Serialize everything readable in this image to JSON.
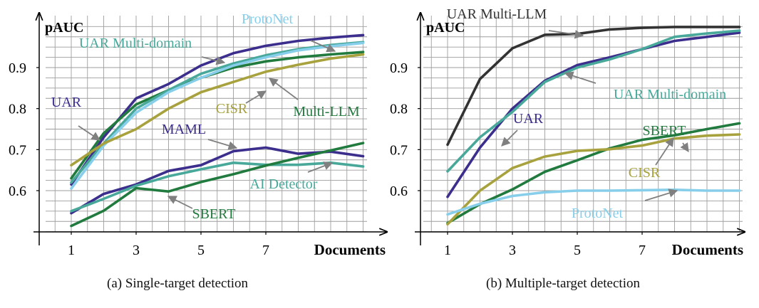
{
  "captions": [
    "(a) Single-target detection",
    "(b) Multiple-target detection"
  ],
  "colors": {
    "UAR": "#3b2e8c",
    "MAML": "#3b2e8c",
    "Multi-LLM": "#217a3e",
    "SBERT": "#217a3e",
    "UAR Multi-domain": "#48a89a",
    "AI Detector": "#48a89a",
    "CISR": "#a8a23e",
    "ProtoNet": "#87ceeb",
    "arrow": "#808080",
    "grid": "#9e9e9e"
  },
  "chart_data": [
    {
      "type": "line",
      "ylabel": "pAUC",
      "xlabel": "Documents",
      "xlim": [
        0,
        10
      ],
      "ylim": [
        0.5,
        1.0
      ],
      "xticks": [
        "1",
        "3",
        "5",
        "7"
      ],
      "yticks": [
        "0.6",
        "0.7",
        "0.8",
        "0.9"
      ],
      "grid": true,
      "x": [
        1,
        2,
        3,
        4,
        5,
        6,
        7,
        8,
        9,
        10
      ],
      "series": [
        {
          "name": "UAR",
          "values": [
            0.615,
            0.73,
            0.825,
            0.86,
            0.905,
            0.935,
            0.953,
            0.965,
            0.973,
            0.979
          ]
        },
        {
          "name": "Multi-LLM",
          "values": [
            0.63,
            0.74,
            0.81,
            0.845,
            0.875,
            0.9,
            0.915,
            0.925,
            0.932,
            0.938
          ]
        },
        {
          "name": "UAR Multi-domain",
          "values": [
            0.62,
            0.715,
            0.8,
            0.845,
            0.885,
            0.91,
            0.93,
            0.945,
            0.955,
            0.962
          ]
        },
        {
          "name": "ProtoNet",
          "values": [
            0.605,
            0.71,
            0.79,
            0.84,
            0.875,
            0.905,
            0.925,
            0.942,
            0.952,
            0.96
          ]
        },
        {
          "name": "CISR",
          "values": [
            0.662,
            0.715,
            0.75,
            0.8,
            0.84,
            0.865,
            0.89,
            0.907,
            0.922,
            0.932
          ]
        },
        {
          "name": "MAML",
          "values": [
            0.545,
            0.592,
            0.615,
            0.648,
            0.662,
            0.696,
            0.705,
            0.69,
            0.695,
            0.684
          ]
        },
        {
          "name": "AI Detector",
          "values": [
            0.55,
            0.58,
            0.612,
            0.635,
            0.652,
            0.668,
            0.663,
            0.663,
            0.668,
            0.659
          ]
        },
        {
          "name": "SBERT",
          "values": [
            0.514,
            0.551,
            0.606,
            0.598,
            0.621,
            0.64,
            0.661,
            0.68,
            0.698,
            0.716
          ]
        }
      ],
      "labels": [
        {
          "text": "ProtoNet",
          "series": "ProtoNet"
        },
        {
          "text": "UAR Multi-domain",
          "series": "UAR Multi-domain"
        },
        {
          "text": "UAR",
          "series": "UAR"
        },
        {
          "text": "CISR",
          "series": "CISR"
        },
        {
          "text": "Multi-LLM",
          "series": "Multi-LLM"
        },
        {
          "text": "MAML",
          "series": "MAML"
        },
        {
          "text": "AI Detector",
          "series": "AI Detector"
        },
        {
          "text": "SBERT",
          "series": "SBERT"
        }
      ]
    },
    {
      "type": "line",
      "ylabel": "pAUC",
      "xlabel": "Documents",
      "xlim": [
        0,
        10
      ],
      "ylim": [
        0.5,
        1.0
      ],
      "xticks": [
        "1",
        "3",
        "5",
        "7"
      ],
      "yticks": [
        "0.6",
        "0.7",
        "0.8",
        "0.9"
      ],
      "grid": true,
      "x": [
        1,
        2,
        3,
        4,
        5,
        6,
        7,
        8,
        9,
        10
      ],
      "series": [
        {
          "name": "UAR Multi-LLM",
          "values": [
            0.712,
            0.872,
            0.947,
            0.98,
            0.982,
            0.993,
            0.997,
            0.999,
            0.999,
            0.999
          ]
        },
        {
          "name": "UAR",
          "values": [
            0.585,
            0.705,
            0.8,
            0.868,
            0.906,
            0.925,
            0.945,
            0.965,
            0.975,
            0.985
          ]
        },
        {
          "name": "UAR Multi-domain",
          "values": [
            0.647,
            0.73,
            0.792,
            0.865,
            0.9,
            0.92,
            0.945,
            0.975,
            0.983,
            0.99
          ]
        },
        {
          "name": "SBERT",
          "values": [
            0.521,
            0.567,
            0.603,
            0.646,
            0.674,
            0.703,
            0.724,
            0.735,
            0.75,
            0.764
          ]
        },
        {
          "name": "CISR",
          "values": [
            0.518,
            0.6,
            0.655,
            0.683,
            0.697,
            0.701,
            0.71,
            0.727,
            0.734,
            0.737
          ]
        },
        {
          "name": "ProtoNet",
          "values": [
            0.542,
            0.568,
            0.587,
            0.596,
            0.6,
            0.6,
            0.601,
            0.602,
            0.6,
            0.6
          ]
        }
      ],
      "labels": [
        {
          "text": "UAR Multi-LLM",
          "series": "UAR Multi-LLM"
        },
        {
          "text": "UAR",
          "series": "UAR"
        },
        {
          "text": "UAR Multi-domain",
          "series": "UAR Multi-domain"
        },
        {
          "text": "SBERT",
          "series": "SBERT"
        },
        {
          "text": "CISR",
          "series": "CISR"
        },
        {
          "text": "ProtoNet",
          "series": "ProtoNet"
        }
      ]
    }
  ]
}
